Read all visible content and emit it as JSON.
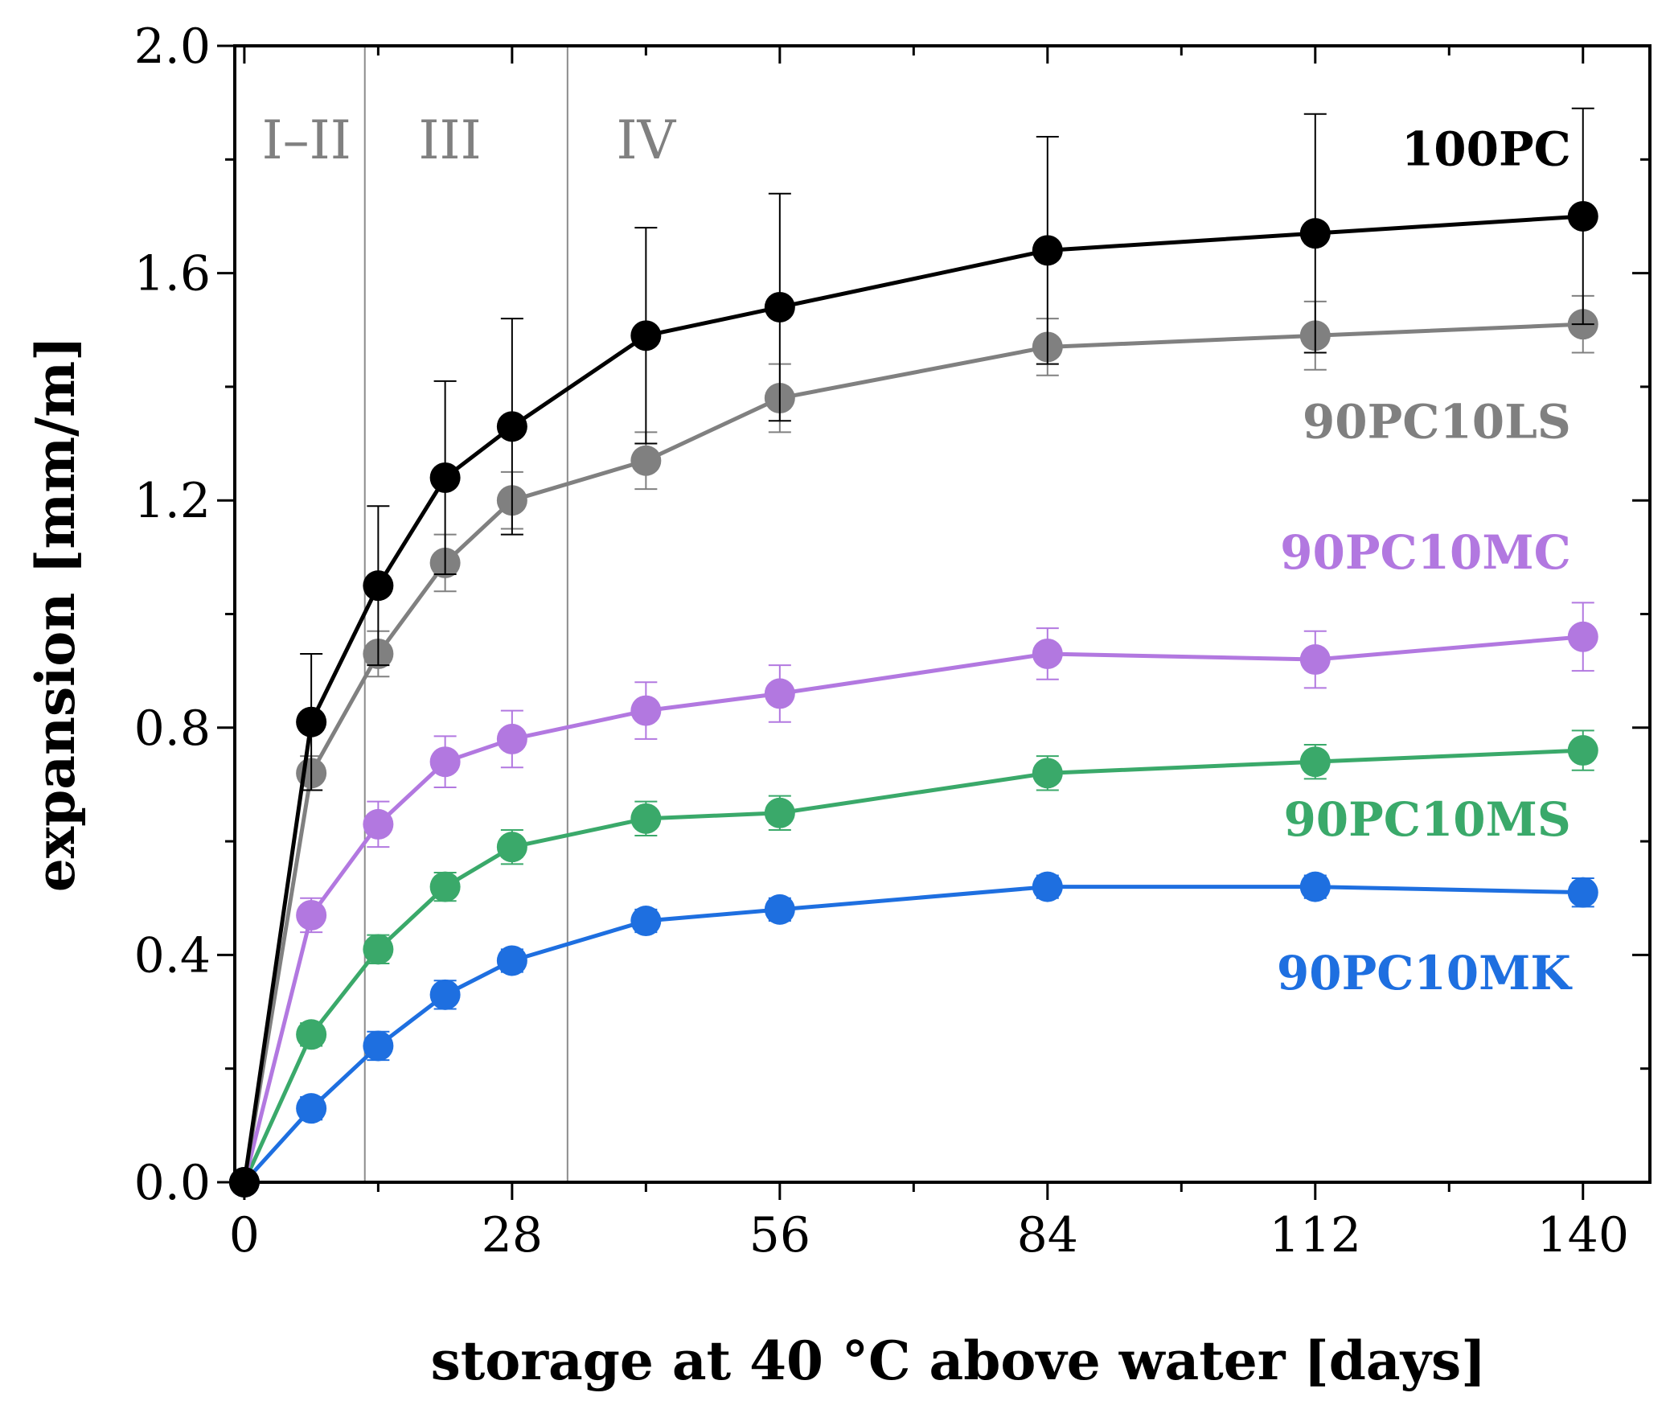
{
  "chart_data": {
    "type": "line",
    "title": "",
    "xlabel": "storage at 40 °C above water [days]",
    "ylabel": "expansion [mm/m]",
    "xlim": [
      -1,
      147
    ],
    "ylim": [
      0,
      2.0
    ],
    "xticks": [
      0,
      28,
      56,
      84,
      112,
      140
    ],
    "xtick_labels": [
      "0",
      "28",
      "56",
      "84",
      "112",
      "140"
    ],
    "yticks": [
      0,
      0.4,
      0.8,
      1.2,
      1.6,
      2.0
    ],
    "ytick_labels": [
      "0.0",
      "0.4",
      "0.8",
      "1.2",
      "1.6",
      "2.0"
    ],
    "grid": false,
    "phase_boundaries": [
      12.6,
      33.8
    ],
    "phases": [
      {
        "label": "I–II",
        "x": 6.5
      },
      {
        "label": "III",
        "x": 21.5
      },
      {
        "label": "IV",
        "x": 42
      }
    ],
    "x": [
      0,
      7,
      14,
      21,
      28,
      42,
      56,
      84,
      112,
      140
    ],
    "series": [
      {
        "name": "100PC",
        "color": "#000000",
        "label_at": [
          140,
          1.79
        ],
        "values": [
          0,
          0.81,
          1.05,
          1.24,
          1.33,
          1.49,
          1.54,
          1.64,
          1.67,
          1.7
        ],
        "errors": [
          0,
          0.12,
          0.14,
          0.17,
          0.19,
          0.19,
          0.2,
          0.2,
          0.21,
          0.19
        ]
      },
      {
        "name": "90PC10LS",
        "color": "#808080",
        "label_at": [
          140,
          1.31
        ],
        "values": [
          0,
          0.72,
          0.93,
          1.09,
          1.2,
          1.27,
          1.38,
          1.47,
          1.49,
          1.51
        ],
        "errors": [
          0,
          0.03,
          0.04,
          0.05,
          0.05,
          0.05,
          0.06,
          0.05,
          0.06,
          0.05
        ]
      },
      {
        "name": "90PC10MC",
        "color": "#b278e0",
        "label_at": [
          140,
          1.08
        ],
        "values": [
          0,
          0.47,
          0.63,
          0.74,
          0.78,
          0.83,
          0.86,
          0.93,
          0.92,
          0.96
        ],
        "errors": [
          0,
          0.03,
          0.04,
          0.045,
          0.05,
          0.05,
          0.05,
          0.045,
          0.05,
          0.06
        ]
      },
      {
        "name": "90PC10MS",
        "color": "#3aa96a",
        "label_at": [
          140,
          0.61
        ],
        "values": [
          0,
          0.26,
          0.41,
          0.52,
          0.59,
          0.64,
          0.65,
          0.72,
          0.74,
          0.76
        ],
        "errors": [
          0,
          0.02,
          0.025,
          0.025,
          0.03,
          0.03,
          0.03,
          0.03,
          0.03,
          0.035
        ]
      },
      {
        "name": "90PC10MK",
        "color": "#1e6fe0",
        "label_at": [
          140,
          0.34
        ],
        "values": [
          0,
          0.13,
          0.24,
          0.33,
          0.39,
          0.46,
          0.48,
          0.52,
          0.52,
          0.51
        ],
        "errors": [
          0,
          0.02,
          0.025,
          0.025,
          0.02,
          0.02,
          0.02,
          0.02,
          0.02,
          0.025
        ]
      }
    ]
  }
}
